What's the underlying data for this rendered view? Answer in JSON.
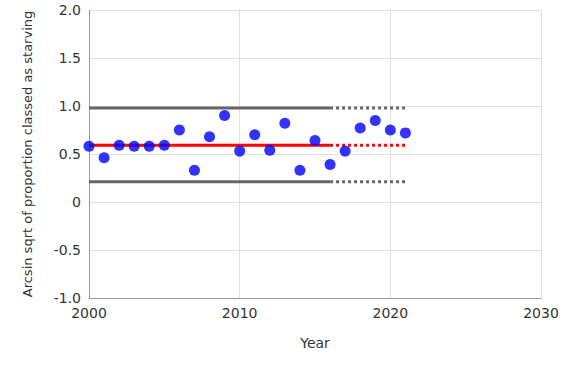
{
  "chart_data": {
    "type": "scatter",
    "x_label": "Year",
    "y_label": "Arcsin sqrt of proportion classed as starving",
    "xlim": [
      2000,
      2030
    ],
    "xticks": [
      2000,
      2010,
      2020,
      2030
    ],
    "ylim": [
      -1,
      2
    ],
    "yticks": [
      {
        "value": -1,
        "label": "-1.0"
      },
      -0.5,
      0,
      0.5,
      {
        "value": 1,
        "label": "1.0"
      },
      1.5,
      {
        "value": 2,
        "label": "2.0"
      }
    ],
    "grid": true,
    "series": [
      {
        "type": "scatter",
        "marker": "circle",
        "color": "#0000ff",
        "x": [
          2000,
          2001,
          2002,
          2003,
          2004,
          2005,
          2006,
          2007,
          2008,
          2009,
          2010,
          2011,
          2012,
          2013,
          2014,
          2015,
          2016,
          2017,
          2018,
          2019,
          2020,
          2021
        ],
        "values": [
          0.58,
          0.46,
          0.59,
          0.58,
          0.58,
          0.59,
          0.75,
          0.33,
          0.68,
          0.9,
          0.53,
          0.7,
          0.54,
          0.82,
          0.33,
          0.64,
          0.39,
          0.53,
          0.77,
          0.85,
          0.75,
          0.72
        ]
      },
      {
        "type": "line",
        "color": "#ff0000",
        "line_style": "solid",
        "x": [
          2000,
          2016
        ],
        "values": [
          0.59,
          0.59
        ]
      },
      {
        "type": "line",
        "color": "#ff0000",
        "line_style": "dotted",
        "x": [
          2016,
          2021
        ],
        "values": [
          0.59,
          0.59
        ]
      },
      {
        "type": "line",
        "color": "#666666",
        "line_style": "solid",
        "x": [
          2000,
          2016
        ],
        "values": [
          0.98,
          0.98
        ]
      },
      {
        "type": "line",
        "color": "#666666",
        "line_style": "dotted",
        "x": [
          2016,
          2021
        ],
        "values": [
          0.98,
          0.98
        ]
      },
      {
        "type": "line",
        "color": "#666666",
        "line_style": "solid",
        "x": [
          2000,
          2016
        ],
        "values": [
          0.21,
          0.21
        ]
      },
      {
        "type": "line",
        "color": "#666666",
        "line_style": "dotted",
        "x": [
          2016,
          2021
        ],
        "values": [
          0.21,
          0.21
        ]
      }
    ]
  }
}
